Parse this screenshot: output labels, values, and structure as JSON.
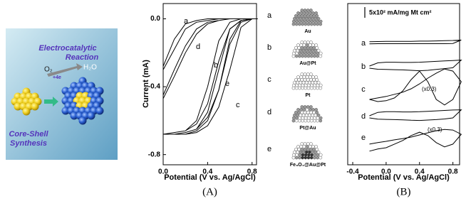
{
  "illustration": {
    "title_lines": [
      "Electrocatalytic",
      "Reaction"
    ],
    "reactant": "O₂",
    "electrons": "+4e",
    "product": "H₂O",
    "synthesis_lines": [
      "Core-Shell",
      "Synthesis"
    ]
  },
  "schematic": {
    "items": [
      {
        "letter": "a",
        "label": "Au"
      },
      {
        "letter": "b",
        "label": "Au@Pt"
      },
      {
        "letter": "c",
        "label": "Pt"
      },
      {
        "letter": "d",
        "label": "Pt@Au"
      },
      {
        "letter": "e",
        "label": "Fe₃O₄@Au@Pt"
      }
    ]
  },
  "chart_data": [
    {
      "type": "line",
      "panel": "(A)",
      "x_label": "Potential (V vs. Ag/AgCl)",
      "y_label": "Current (mA)",
      "x": [
        0,
        0.1,
        0.2,
        0.3,
        0.4,
        0.5,
        0.6,
        0.7,
        0.8,
        0.85,
        0.8,
        0.7,
        0.6,
        0.5,
        0.4,
        0.3,
        0.2,
        0.1,
        0
      ],
      "series": [
        {
          "name": "a",
          "color": "#000000",
          "values": [
            -0.28,
            -0.12,
            -0.03,
            -0.01,
            0,
            0,
            0,
            0,
            0,
            0,
            0,
            0,
            0,
            0,
            -0.01,
            -0.02,
            -0.06,
            -0.18,
            -0.3
          ]
        },
        {
          "name": "b",
          "color": "#000000",
          "values": [
            -0.68,
            -0.67,
            -0.66,
            -0.62,
            -0.5,
            -0.25,
            -0.06,
            -0.01,
            0,
            0,
            0,
            0,
            -0.02,
            -0.13,
            -0.4,
            -0.6,
            -0.66,
            -0.67,
            -0.68
          ]
        },
        {
          "name": "c",
          "color": "#000000",
          "values": [
            -0.68,
            -0.68,
            -0.68,
            -0.67,
            -0.63,
            -0.52,
            -0.3,
            -0.05,
            0,
            0,
            0,
            -0.01,
            -0.12,
            -0.42,
            -0.6,
            -0.66,
            -0.68,
            -0.68,
            -0.68
          ]
        },
        {
          "name": "d",
          "color": "#000000",
          "values": [
            -0.45,
            -0.3,
            -0.16,
            -0.06,
            -0.02,
            -0.01,
            0,
            0,
            0,
            0,
            0,
            0,
            0,
            -0.01,
            -0.03,
            -0.09,
            -0.2,
            -0.34,
            -0.47
          ]
        },
        {
          "name": "e",
          "color": "#000000",
          "values": [
            -0.68,
            -0.68,
            -0.67,
            -0.65,
            -0.58,
            -0.42,
            -0.15,
            -0.02,
            0,
            0,
            0,
            -0.01,
            -0.06,
            -0.3,
            -0.55,
            -0.65,
            -0.67,
            -0.68,
            -0.68
          ]
        }
      ],
      "xlim": [
        0,
        0.84
      ],
      "ylim": [
        -0.86,
        0.09
      ],
      "xticks": [
        {
          "value": 0,
          "label": "0.0"
        },
        0.4,
        0.8
      ],
      "yticks": [
        {
          "value": 0,
          "label": "0.0"
        },
        -0.4,
        -0.8
      ]
    },
    {
      "type": "line",
      "panel": "(B)",
      "x_label": "Potential (V vs. Ag/AgCl)",
      "scale_bar": {
        "value": 500,
        "label": "5x10² mA/mg Mt cm²"
      },
      "x": [
        -0.2,
        -0.1,
        0,
        0.1,
        0.2,
        0.3,
        0.4,
        0.5,
        0.6,
        0.7,
        0.8,
        0.9,
        0.8,
        0.7,
        0.6,
        0.5,
        0.4,
        0.3,
        0.2,
        0.1,
        0,
        -0.1,
        -0.2
      ],
      "series": [
        {
          "name": "a",
          "color": "#000000",
          "values": [
            40,
            50,
            60,
            60,
            60,
            60,
            70,
            70,
            80,
            90,
            100,
            120,
            -40,
            -50,
            -50,
            -50,
            -50,
            -50,
            -50,
            -50,
            -50,
            -50,
            -60
          ]
        },
        {
          "name": "b",
          "color": "#000000",
          "values": [
            0,
            150,
            180,
            180,
            170,
            170,
            180,
            200,
            220,
            240,
            260,
            280,
            -80,
            -120,
            -160,
            -200,
            -220,
            -200,
            -180,
            -170,
            -160,
            -150,
            -100
          ]
        },
        {
          "name": "c",
          "color": "#000000",
          "annotation": "(x0.3)",
          "values": [
            -500,
            -430,
            -360,
            -260,
            -160,
            0,
            230,
            500,
            730,
            930,
            830,
            330,
            -500,
            -760,
            -500,
            330,
            830,
            430,
            -100,
            -430,
            -560,
            -600,
            -500
          ]
        },
        {
          "name": "d",
          "color": "#000000",
          "values": [
            0,
            160,
            190,
            190,
            180,
            180,
            190,
            210,
            230,
            250,
            270,
            280,
            -100,
            -150,
            -180,
            -200,
            -220,
            -210,
            -190,
            -180,
            -170,
            -160,
            -100
          ]
        },
        {
          "name": "e",
          "color": "#000000",
          "annotation": "(x0.3)",
          "values": [
            -330,
            -260,
            -200,
            -130,
            -70,
            0,
            100,
            200,
            300,
            360,
            330,
            130,
            -330,
            -460,
            -260,
            70,
            230,
            70,
            -160,
            -330,
            -500,
            -560,
            -660
          ]
        }
      ],
      "xlim": [
        -0.46,
        0.88
      ],
      "xticks": [
        -0.4,
        {
          "value": 0,
          "label": "0.0"
        },
        0.4,
        0.8
      ]
    }
  ]
}
